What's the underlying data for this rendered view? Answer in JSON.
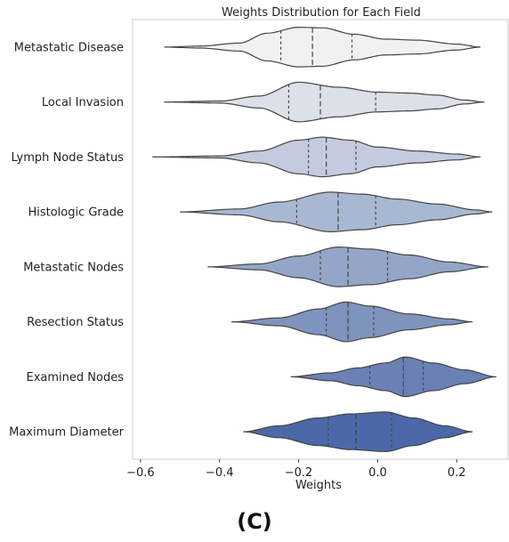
{
  "panel_label": "(C)",
  "chart_data": {
    "type": "violin",
    "title": "Weights Distribution for Each Field",
    "xlabel": "Weights",
    "ylabel": "",
    "xlim": [
      -0.62,
      0.33
    ],
    "xticks": [
      -0.6,
      -0.4,
      -0.2,
      0.0,
      0.2
    ],
    "xtick_labels": [
      "−0.6",
      "−0.4",
      "−0.2",
      "0.0",
      "0.2"
    ],
    "grid": false,
    "inner": "quartile",
    "categories": [
      {
        "name": "Metastatic Disease",
        "color": "#f1f1f1",
        "min": -0.54,
        "max": 0.26,
        "q1": -0.245,
        "median": -0.165,
        "q3": -0.065,
        "density": [
          [
            -0.54,
            0
          ],
          [
            -0.45,
            0.05
          ],
          [
            -0.35,
            0.2
          ],
          [
            -0.28,
            0.7
          ],
          [
            -0.2,
            1
          ],
          [
            -0.14,
            0.97
          ],
          [
            -0.06,
            0.65
          ],
          [
            0.02,
            0.4
          ],
          [
            0.1,
            0.35
          ],
          [
            0.2,
            0.15
          ],
          [
            0.26,
            0
          ]
        ]
      },
      {
        "name": "Local Invasion",
        "color": "#dbe0e9",
        "min": -0.54,
        "max": 0.27,
        "q1": -0.225,
        "median": -0.145,
        "q3": -0.005,
        "density": [
          [
            -0.54,
            0
          ],
          [
            -0.4,
            0.05
          ],
          [
            -0.3,
            0.3
          ],
          [
            -0.2,
            1
          ],
          [
            -0.1,
            0.75
          ],
          [
            0,
            0.5
          ],
          [
            0.08,
            0.45
          ],
          [
            0.15,
            0.35
          ],
          [
            0.22,
            0.1
          ],
          [
            0.27,
            0
          ]
        ]
      },
      {
        "name": "Lymph Node Status",
        "color": "#c4cbde",
        "min": -0.57,
        "max": 0.26,
        "q1": -0.175,
        "median": -0.13,
        "q3": -0.055,
        "density": [
          [
            -0.57,
            0
          ],
          [
            -0.4,
            0.05
          ],
          [
            -0.3,
            0.3
          ],
          [
            -0.2,
            0.85
          ],
          [
            -0.14,
            1
          ],
          [
            -0.07,
            0.85
          ],
          [
            0,
            0.5
          ],
          [
            0.1,
            0.3
          ],
          [
            0.2,
            0.15
          ],
          [
            0.26,
            0
          ]
        ]
      },
      {
        "name": "Histologic Grade",
        "color": "#a9b8d2",
        "min": -0.5,
        "max": 0.29,
        "q1": -0.205,
        "median": -0.1,
        "q3": -0.005,
        "density": [
          [
            -0.5,
            0
          ],
          [
            -0.35,
            0.15
          ],
          [
            -0.25,
            0.5
          ],
          [
            -0.12,
            1
          ],
          [
            -0.04,
            0.9
          ],
          [
            0.05,
            0.65
          ],
          [
            0.15,
            0.4
          ],
          [
            0.25,
            0.1
          ],
          [
            0.29,
            0
          ]
        ]
      },
      {
        "name": "Metastatic Nodes",
        "color": "#94a6c7",
        "min": -0.43,
        "max": 0.28,
        "q1": -0.145,
        "median": -0.075,
        "q3": 0.025,
        "density": [
          [
            -0.43,
            0
          ],
          [
            -0.3,
            0.15
          ],
          [
            -0.2,
            0.55
          ],
          [
            -0.1,
            1
          ],
          [
            -0.02,
            0.9
          ],
          [
            0.08,
            0.6
          ],
          [
            0.18,
            0.25
          ],
          [
            0.28,
            0
          ]
        ]
      },
      {
        "name": "Resection Status",
        "color": "#7e94bd",
        "min": -0.37,
        "max": 0.24,
        "q1": -0.13,
        "median": -0.075,
        "q3": -0.01,
        "density": [
          [
            -0.37,
            0
          ],
          [
            -0.25,
            0.2
          ],
          [
            -0.15,
            0.65
          ],
          [
            -0.08,
            1
          ],
          [
            -0.02,
            0.8
          ],
          [
            0.08,
            0.4
          ],
          [
            0.18,
            0.15
          ],
          [
            0.24,
            0
          ]
        ]
      },
      {
        "name": "Examined Nodes",
        "color": "#6b80b5",
        "min": -0.22,
        "max": 0.3,
        "q1": -0.02,
        "median": 0.065,
        "q3": 0.115,
        "density": [
          [
            -0.22,
            0
          ],
          [
            -0.12,
            0.2
          ],
          [
            -0.05,
            0.45
          ],
          [
            0.02,
            0.7
          ],
          [
            0.07,
            1
          ],
          [
            0.14,
            0.7
          ],
          [
            0.22,
            0.35
          ],
          [
            0.3,
            0
          ]
        ]
      },
      {
        "name": "Maximum Diameter",
        "color": "#4b69a8",
        "min": -0.34,
        "max": 0.24,
        "q1": -0.125,
        "median": -0.055,
        "q3": 0.035,
        "density": [
          [
            -0.34,
            0
          ],
          [
            -0.25,
            0.3
          ],
          [
            -0.15,
            0.7
          ],
          [
            -0.07,
            0.9
          ],
          [
            0.02,
            1
          ],
          [
            0.09,
            0.7
          ],
          [
            0.17,
            0.3
          ],
          [
            0.24,
            0
          ]
        ]
      }
    ]
  }
}
